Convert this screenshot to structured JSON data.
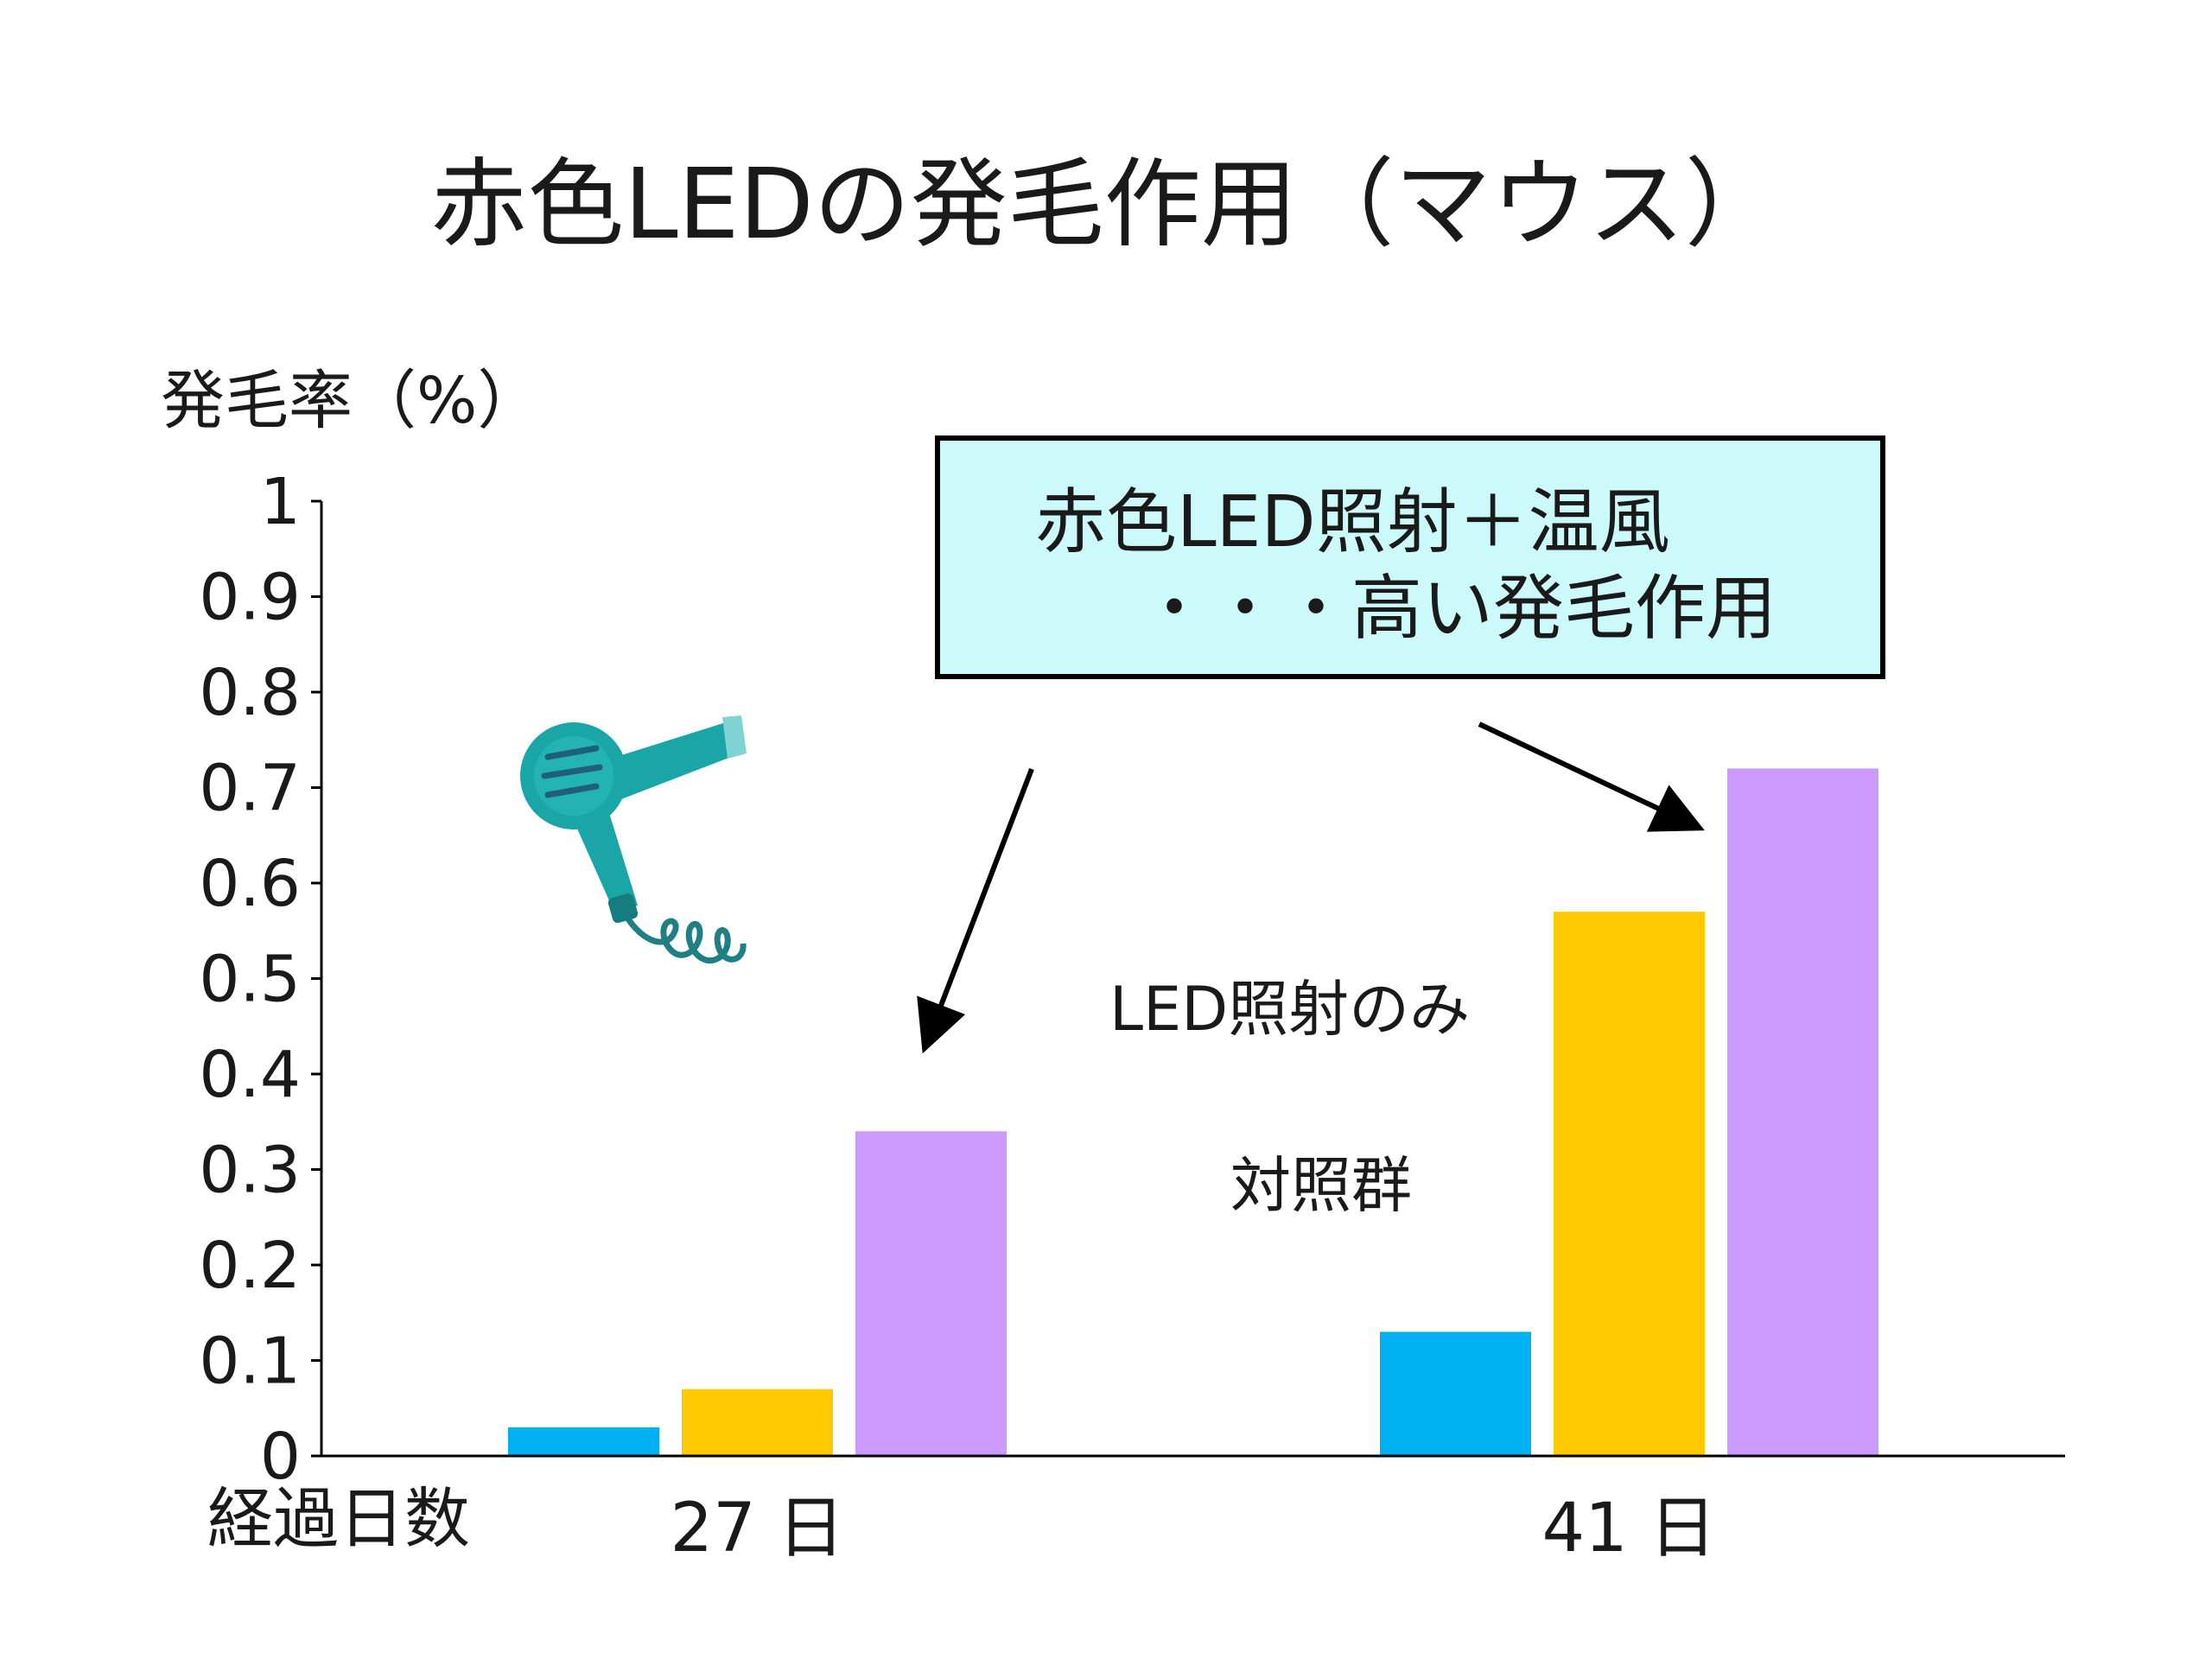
{
  "slide": {
    "title": "赤色LEDの発毛作用（マウス）",
    "callout": {
      "line1": "赤色LED照射＋温風",
      "line2": "・・・高い発毛作用"
    },
    "series_labels": {
      "led_only": "LED照射のみ",
      "control": "対照群"
    },
    "icon": "hair-dryer-icon"
  },
  "chart_data": {
    "type": "bar",
    "title": "赤色LEDの発毛作用（マウス）",
    "ylabel": "発毛率（%）",
    "xlabel": "経過日数",
    "categories": [
      "27 日",
      "41 日"
    ],
    "ylim": [
      0,
      1
    ],
    "yticks": [
      0,
      0.1,
      0.2,
      0.3,
      0.4,
      0.5,
      0.6,
      0.7,
      0.8,
      0.9,
      1
    ],
    "ytick_labels": [
      "0",
      "0.1",
      "0.2",
      "0.3",
      "0.4",
      "0.5",
      "0.6",
      "0.7",
      "0.8",
      "0.9",
      "1"
    ],
    "grid": false,
    "series": [
      {
        "name": "対照群",
        "values": [
          0.03,
          0.13
        ],
        "color": "#00b0f0"
      },
      {
        "name": "LED照射のみ",
        "values": [
          0.07,
          0.57
        ],
        "color": "#ffc800"
      },
      {
        "name": "赤色LED照射＋温風",
        "values": [
          0.34,
          0.72
        ],
        "color": "#cc99ff"
      }
    ]
  },
  "colors": {
    "callout_bg": "#ccfafb",
    "dryer": "#1aa6a6"
  }
}
